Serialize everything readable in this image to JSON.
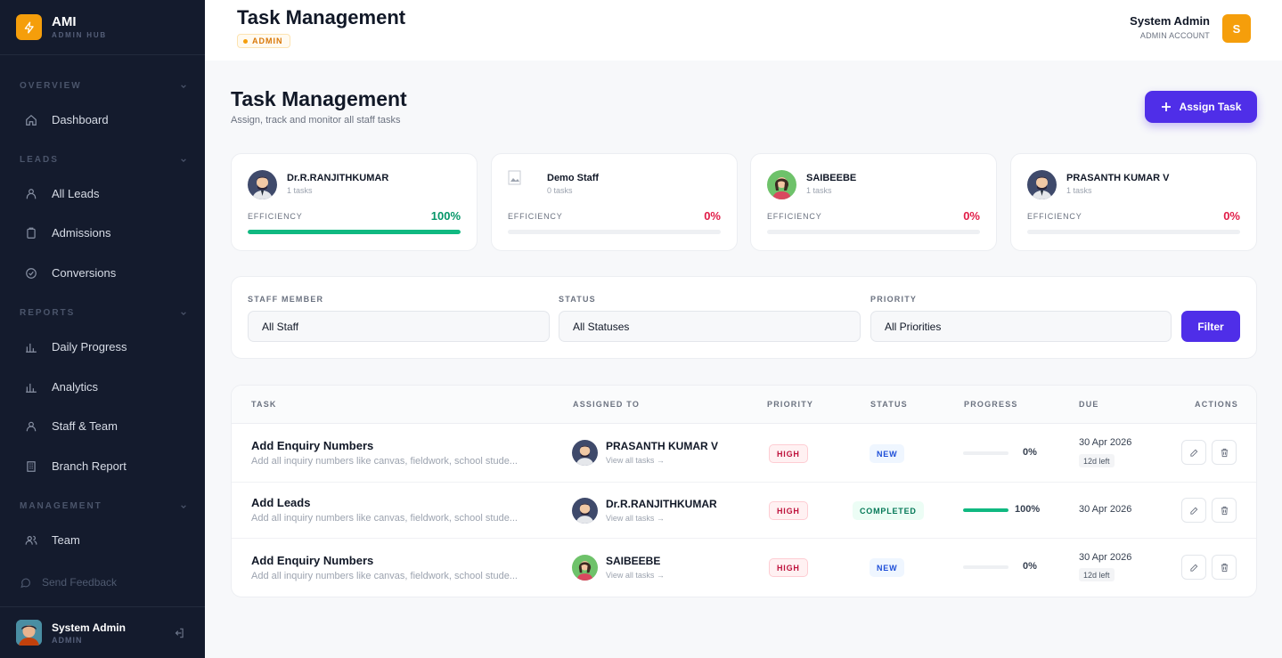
{
  "brand": {
    "name": "AMI",
    "subtitle": "ADMIN HUB"
  },
  "sidebar": {
    "sections": [
      {
        "label": "OVERVIEW"
      },
      {
        "label": "LEADS"
      },
      {
        "label": "REPORTS"
      },
      {
        "label": "MANAGEMENT"
      }
    ],
    "items": [
      {
        "label": "Dashboard",
        "icon": "home-icon"
      },
      {
        "label": "All Leads",
        "icon": "users-icon"
      },
      {
        "label": "Admissions",
        "icon": "clipboard-icon"
      },
      {
        "label": "Conversions",
        "icon": "check-circle-icon"
      },
      {
        "label": "Daily Progress",
        "icon": "bar-chart-icon"
      },
      {
        "label": "Analytics",
        "icon": "bar-chart-icon"
      },
      {
        "label": "Staff & Team",
        "icon": "user-icon"
      },
      {
        "label": "Branch Report",
        "icon": "building-icon"
      },
      {
        "label": "Team",
        "icon": "users-icon"
      }
    ],
    "feedback": "Send Feedback",
    "user": {
      "name": "System Admin",
      "role": "ADMIN"
    }
  },
  "topbar": {
    "title": "Task Management",
    "role_badge": "ADMIN",
    "user_name": "System Admin",
    "user_role": "ADMIN ACCOUNT",
    "avatar_letter": "S"
  },
  "page": {
    "title": "Task Management",
    "subtitle": "Assign, track and monitor all staff tasks",
    "assign_button": "Assign Task"
  },
  "staff_cards": [
    {
      "name": "Dr.R.RANJITHKUMAR",
      "tasks": "1 tasks",
      "efficiency_label": "EFFICIENCY",
      "efficiency": "100%",
      "efficiency_value": 1.0,
      "color": "#059669"
    },
    {
      "name": "Demo Staff",
      "tasks": "0 tasks",
      "efficiency_label": "EFFICIENCY",
      "efficiency": "0%",
      "efficiency_value": 0,
      "color": "#e11d48"
    },
    {
      "name": "SAIBEEBE",
      "tasks": "1 tasks",
      "efficiency_label": "EFFICIENCY",
      "efficiency": "0%",
      "efficiency_value": 0,
      "color": "#e11d48"
    },
    {
      "name": "PRASANTH KUMAR V",
      "tasks": "1 tasks",
      "efficiency_label": "EFFICIENCY",
      "efficiency": "0%",
      "efficiency_value": 0,
      "color": "#e11d48"
    }
  ],
  "filters": {
    "staff_label": "STAFF MEMBER",
    "staff_value": "All Staff",
    "status_label": "STATUS",
    "status_value": "All Statuses",
    "priority_label": "PRIORITY",
    "priority_value": "All Priorities",
    "button": "Filter"
  },
  "table": {
    "headers": {
      "task": "TASK",
      "assigned": "ASSIGNED TO",
      "priority": "PRIORITY",
      "status": "STATUS",
      "progress": "PROGRESS",
      "due": "DUE",
      "actions": "ACTIONS"
    },
    "rows": [
      {
        "title": "Add Enquiry Numbers",
        "desc": "Add all inquiry numbers like canvas, fieldwork, school stude...",
        "assignee": "PRASANTH KUMAR V",
        "link": "View all tasks →",
        "priority": "HIGH",
        "status": "NEW",
        "progress": "0%",
        "progress_value": 0,
        "due": "30 Apr 2026",
        "due_left": "12d left"
      },
      {
        "title": "Add Leads",
        "desc": "Add all inquiry numbers like canvas, fieldwork, school stude...",
        "assignee": "Dr.R.RANJITHKUMAR",
        "link": "View all tasks →",
        "priority": "HIGH",
        "status": "COMPLETED",
        "progress": "100%",
        "progress_value": 1.0,
        "due": "30 Apr 2026",
        "due_left": ""
      },
      {
        "title": "Add Enquiry Numbers",
        "desc": "Add all inquiry numbers like canvas, fieldwork, school stude...",
        "assignee": "SAIBEEBE",
        "link": "View all tasks →",
        "priority": "HIGH",
        "status": "NEW",
        "progress": "0%",
        "progress_value": 0,
        "due": "30 Apr 2026",
        "due_left": "12d left"
      }
    ]
  },
  "colors": {
    "accent": "#4f2ee8",
    "brand": "#f59e0b",
    "sidebar": "#141b2d",
    "success": "#10b981",
    "danger": "#e11d48"
  }
}
